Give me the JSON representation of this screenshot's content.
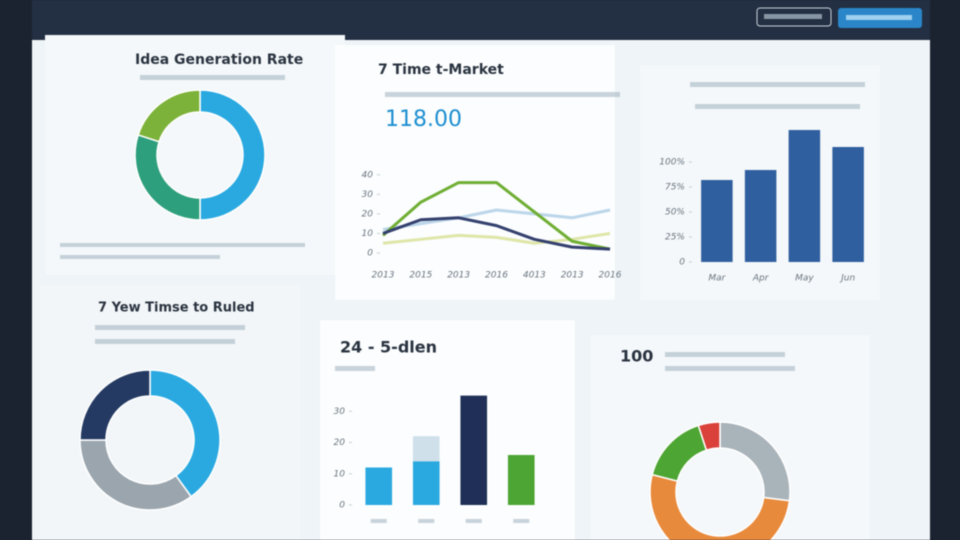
{
  "panels": [
    {
      "type": "donut",
      "title": "Idea Generation Rate",
      "values": [
        50,
        30,
        20
      ],
      "colors": [
        "#2aa9e0",
        "#2e9f7c",
        "#7db23a"
      ]
    },
    {
      "type": "line",
      "title": "7 Time t-Market",
      "kpi": "118.00",
      "categories": [
        "2013",
        "2015",
        "2013",
        "2016",
        "4013",
        "2013",
        "2016"
      ],
      "series": [
        {
          "color": "#bcd6ea",
          "values": [
            12,
            15,
            18,
            22,
            20,
            18,
            22
          ]
        },
        {
          "color": "#dfe6a8",
          "values": [
            5,
            7,
            9,
            8,
            5,
            7,
            10
          ]
        },
        {
          "color": "#6fae33",
          "values": [
            9,
            26,
            36,
            36,
            21,
            6,
            2
          ]
        },
        {
          "color": "#34406e",
          "values": [
            10,
            17,
            18,
            14,
            7,
            3,
            2
          ]
        }
      ],
      "ylim": [
        0,
        45
      ],
      "yticks": [
        0,
        10,
        20,
        30,
        40
      ]
    },
    {
      "type": "bar",
      "categories": [
        "Mar",
        "Apr",
        "May",
        "Jun"
      ],
      "values": [
        82,
        92,
        132,
        115
      ],
      "color": "#2f5f9e",
      "ylim": [
        0,
        140
      ],
      "yticks": [
        0,
        {
          "value": 25,
          "label": "25%"
        },
        {
          "value": 50,
          "label": "50%"
        },
        {
          "value": 75,
          "label": "75%"
        },
        {
          "value": 100,
          "label": "100%"
        }
      ]
    },
    {
      "type": "donut",
      "title": "7 Yew Timse to Ruled",
      "values": [
        40,
        35,
        25
      ],
      "colors": [
        "#2aa9e0",
        "#9aa5ad",
        "#243a63"
      ]
    },
    {
      "type": "stacked-bar",
      "title": "24 - 5-dlen",
      "series": [
        {
          "color": "#2aa9e0",
          "values": [
            12,
            14,
            35,
            16
          ]
        },
        {
          "color": "#cfe0ea",
          "values": [
            null,
            8,
            null,
            null
          ]
        }
      ],
      "bar_colors": [
        "#2aa9e0",
        "#2aa9e0",
        "#1f2f57",
        "#4da533"
      ],
      "ylim": [
        0,
        40
      ],
      "yticks": [
        0,
        10,
        20,
        30
      ]
    },
    {
      "type": "donut",
      "title": "100",
      "values": [
        27,
        52,
        16,
        5
      ],
      "colors": [
        "#a9b3ba",
        "#e88a3c",
        "#4da533",
        "#d9413a"
      ]
    }
  ]
}
